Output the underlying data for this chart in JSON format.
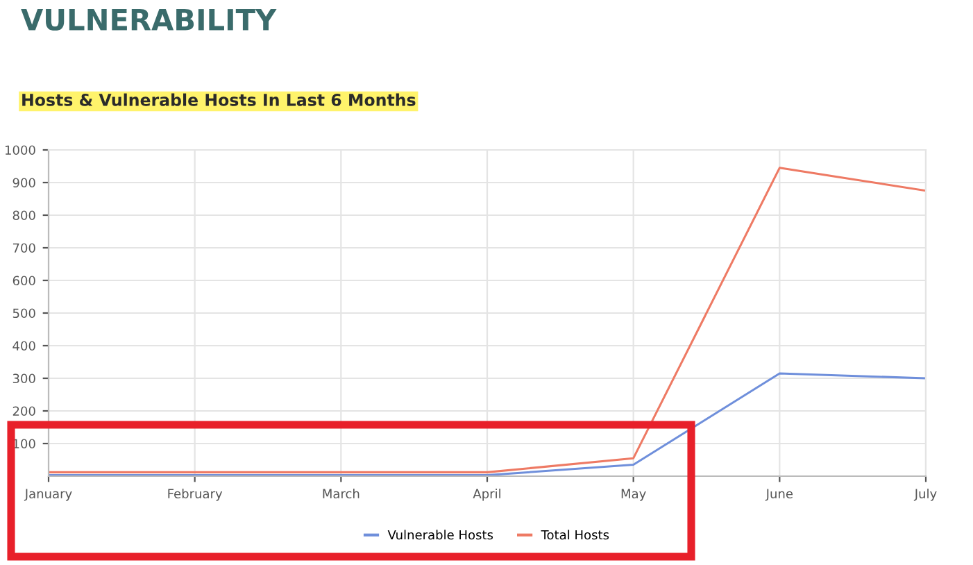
{
  "chart_data": {
    "type": "line",
    "title": "VULNERABILITY",
    "subtitle": "Hosts & Vulnerable Hosts In Last 6 Months",
    "categories": [
      "January",
      "February",
      "March",
      "April",
      "May",
      "June",
      "July"
    ],
    "series": [
      {
        "name": "Vulnerable Hosts",
        "color": "#6f8fdb",
        "values": [
          3,
          3,
          3,
          3,
          35,
          315,
          300
        ]
      },
      {
        "name": "Total Hosts",
        "color": "#ee7a64",
        "values": [
          12,
          12,
          12,
          12,
          55,
          945,
          875
        ]
      }
    ],
    "ylim": [
      0,
      1000
    ],
    "yticks": [
      100,
      200,
      300,
      400,
      500,
      600,
      700,
      800,
      900,
      1000
    ],
    "grid": true,
    "legend": "bottom",
    "marker": "none",
    "line_style": "solid"
  }
}
